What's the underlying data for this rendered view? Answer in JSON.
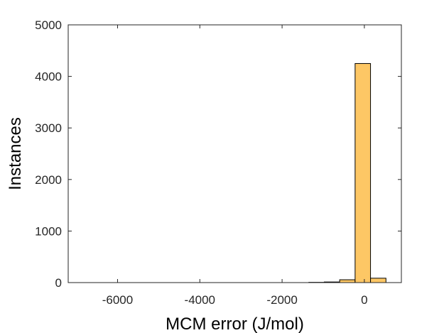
{
  "chart_data": {
    "type": "bar",
    "title": "",
    "xlabel": "MCM error (J/mol)",
    "ylabel": "Instances",
    "xlim": [
      -7200,
      900
    ],
    "ylim": [
      0,
      5000
    ],
    "xticks": [
      -6000,
      -4000,
      -2000,
      0
    ],
    "xtick_labels": [
      "-6000",
      "-4000",
      "-2000",
      "0"
    ],
    "yticks": [
      0,
      1000,
      2000,
      3000,
      4000,
      5000
    ],
    "ytick_labels": [
      "0",
      "1000",
      "2000",
      "3000",
      "4000",
      "5000"
    ],
    "bin_width": 375,
    "bins": [
      {
        "x0": -1350,
        "x1": -975,
        "value": 5
      },
      {
        "x0": -975,
        "x1": -600,
        "value": 12
      },
      {
        "x0": -600,
        "x1": -225,
        "value": 55
      },
      {
        "x0": -225,
        "x1": 150,
        "value": 4250
      },
      {
        "x0": 150,
        "x1": 525,
        "value": 85
      }
    ],
    "grid": false,
    "legend": "none",
    "bar_color": "#FDC765",
    "edge_color": "#000000"
  }
}
